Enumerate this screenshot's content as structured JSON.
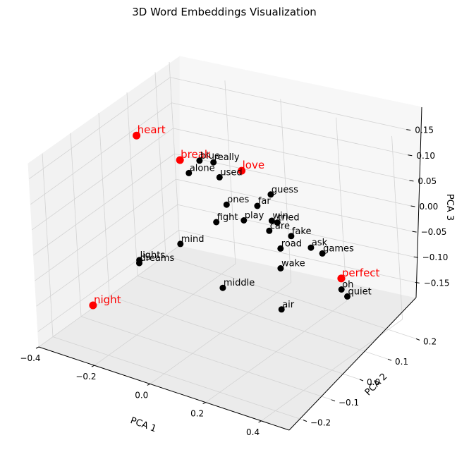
{
  "chart_data": {
    "type": "scatter",
    "title": "3D Word Embeddings Visualization",
    "xlabel": "PCA 1",
    "ylabel": "PCA 2",
    "zlabel": "PCA 3",
    "xlim": [
      -0.4,
      0.5
    ],
    "ylim": [
      -0.25,
      0.25
    ],
    "zlim": [
      -0.18,
      0.18
    ],
    "xticks": [
      "−0.4",
      "−0.2",
      "0.0",
      "0.2",
      "0.4"
    ],
    "yticks": [
      "−0.2",
      "−0.1",
      "0.0",
      "0.1",
      "0.2"
    ],
    "zticks": [
      "−0.15",
      "−0.10",
      "−0.05",
      "0.00",
      "0.05",
      "0.10",
      "0.15"
    ],
    "grid": true,
    "colors": {
      "highlight": "#ff0000",
      "normal": "#000000"
    },
    "points": [
      {
        "label": "heart",
        "x": -0.32,
        "y": 0.05,
        "z": 0.13,
        "highlight": true
      },
      {
        "label": "break",
        "x": -0.22,
        "y": 0.1,
        "z": 0.08,
        "highlight": true
      },
      {
        "label": "love",
        "x": -0.05,
        "y": 0.15,
        "z": 0.07,
        "highlight": true
      },
      {
        "label": "perfect",
        "x": 0.4,
        "y": 0.05,
        "z": -0.02,
        "highlight": true
      },
      {
        "label": "night",
        "x": -0.3,
        "y": -0.15,
        "z": -0.12,
        "highlight": true
      },
      {
        "label": "blue",
        "x": -0.17,
        "y": 0.12,
        "z": 0.08,
        "highlight": false
      },
      {
        "label": "really",
        "x": -0.13,
        "y": 0.13,
        "z": 0.08,
        "highlight": false
      },
      {
        "label": "alone",
        "x": -0.19,
        "y": 0.1,
        "z": 0.06,
        "highlight": false
      },
      {
        "label": "used",
        "x": -0.1,
        "y": 0.12,
        "z": 0.06,
        "highlight": false
      },
      {
        "label": "guess",
        "x": 0.03,
        "y": 0.17,
        "z": 0.03,
        "highlight": false
      },
      {
        "label": "far",
        "x": 0.0,
        "y": 0.15,
        "z": 0.01,
        "highlight": false
      },
      {
        "label": "ones",
        "x": -0.08,
        "y": 0.12,
        "z": 0.01,
        "highlight": false
      },
      {
        "label": "play",
        "x": -0.02,
        "y": 0.12,
        "z": -0.01,
        "highlight": false
      },
      {
        "label": "win",
        "x": 0.05,
        "y": 0.15,
        "z": -0.01,
        "highlight": false
      },
      {
        "label": "tried",
        "x": 0.07,
        "y": 0.15,
        "z": -0.01,
        "highlight": false
      },
      {
        "label": "care",
        "x": 0.06,
        "y": 0.13,
        "z": -0.02,
        "highlight": false
      },
      {
        "label": "fight",
        "x": -0.1,
        "y": 0.1,
        "z": -0.02,
        "highlight": false
      },
      {
        "label": "fake",
        "x": 0.15,
        "y": 0.12,
        "z": -0.01,
        "highlight": false
      },
      {
        "label": "road",
        "x": 0.13,
        "y": 0.1,
        "z": -0.03,
        "highlight": false
      },
      {
        "label": "ask",
        "x": 0.22,
        "y": 0.12,
        "z": -0.02,
        "highlight": false
      },
      {
        "label": "games",
        "x": 0.25,
        "y": 0.13,
        "z": -0.03,
        "highlight": false
      },
      {
        "label": "wake",
        "x": 0.18,
        "y": 0.05,
        "z": -0.04,
        "highlight": false
      },
      {
        "label": "oh",
        "x": 0.42,
        "y": 0.03,
        "z": -0.03,
        "highlight": false
      },
      {
        "label": "quiet",
        "x": 0.44,
        "y": 0.03,
        "z": -0.04,
        "highlight": false
      },
      {
        "label": "mind",
        "x": -0.15,
        "y": 0.02,
        "z": -0.04,
        "highlight": false
      },
      {
        "label": "lights",
        "x": -0.25,
        "y": -0.03,
        "z": -0.07,
        "highlight": false
      },
      {
        "label": "dreams",
        "x": -0.24,
        "y": -0.04,
        "z": -0.07,
        "highlight": false
      },
      {
        "label": "middle",
        "x": 0.05,
        "y": -0.03,
        "z": -0.07,
        "highlight": false
      },
      {
        "label": "air",
        "x": 0.25,
        "y": -0.02,
        "z": -0.08,
        "highlight": false
      }
    ]
  }
}
